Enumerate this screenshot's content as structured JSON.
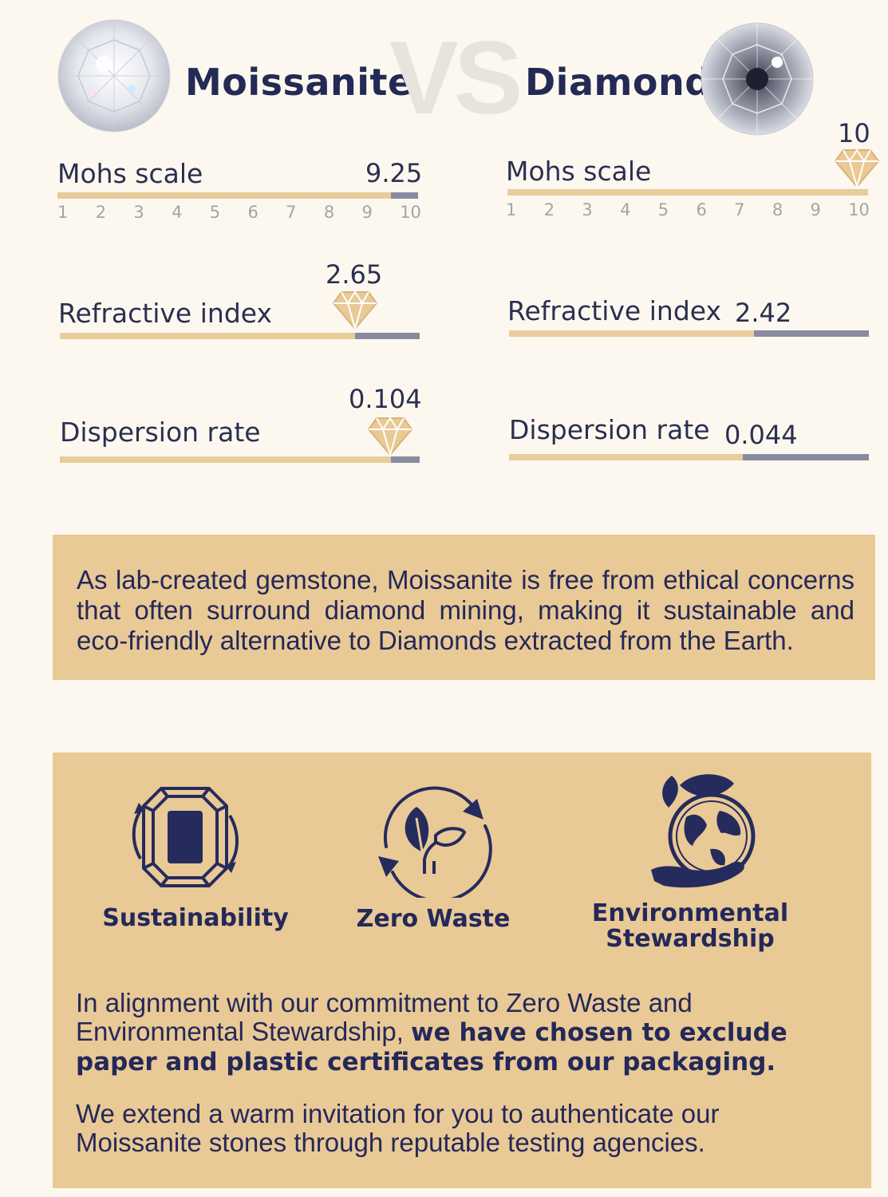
{
  "header": {
    "left_title": "Moissanite",
    "vs": "VS",
    "right_title": "Diamond"
  },
  "scale_ticks": [
    "1",
    "2",
    "3",
    "4",
    "5",
    "6",
    "7",
    "8",
    "9",
    "10"
  ],
  "moissanite": {
    "mohs": {
      "label": "Mohs scale",
      "value": "9.25",
      "fraction": 0.925
    },
    "refractive": {
      "label": "Refractive index",
      "value": "2.65",
      "fraction": 0.82
    },
    "dispersion": {
      "label": "Dispersion rate",
      "value": "0.104",
      "fraction": 0.92
    }
  },
  "diamond": {
    "mohs": {
      "label": "Mohs scale",
      "value": "10",
      "fraction": 1.0
    },
    "refractive": {
      "label": "Refractive index",
      "value": "2.42",
      "fraction": 0.68
    },
    "dispersion": {
      "label": "Dispersion rate",
      "value": "0.044",
      "fraction": 0.65
    }
  },
  "colors": {
    "background": "#fcf8f0",
    "gold": "#e9c995",
    "bar_gold": "#e8cc9b",
    "bar_gray": "#8a8a9e",
    "navy": "#24285a"
  },
  "ethics_panel": {
    "text": "As lab-created gemstone, Moissanite is free from ethical concerns that often surround diamond mining, making it sustainable and eco-friendly alternative to Diamonds extracted from the Earth."
  },
  "features": [
    {
      "label": "Sustainability",
      "icon": "emerald-cut-gem-cycle-icon"
    },
    {
      "label": "Zero Waste",
      "icon": "leaf-recycle-icon"
    },
    {
      "label_line1": "Environmental",
      "label_line2": "Stewardship",
      "icon": "globe-in-hand-icon"
    }
  ],
  "commitment": {
    "part1": "In alignment with our commitment to Zero Waste and Environmental Stewardship, ",
    "part2_bold": "we have chosen to exclude paper and plastic certificates from our packaging.",
    "invitation": "We extend a warm invitation for you to authenticate our Moissanite stones through reputable testing agencies."
  }
}
